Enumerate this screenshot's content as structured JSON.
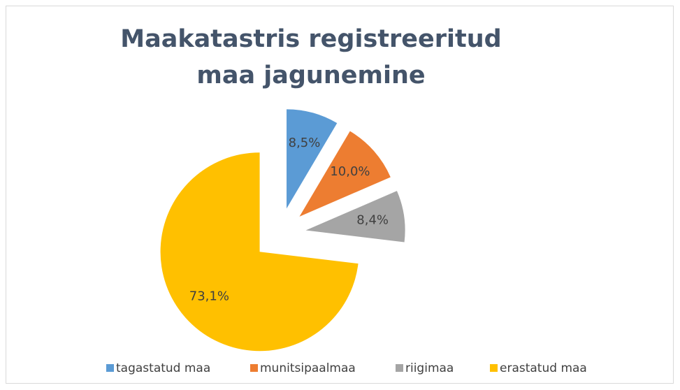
{
  "chart_data": {
    "type": "pie",
    "title": "Maakatastris registreeritud maa jagunemine",
    "categories": [
      "tagastatud maa",
      "munitsipaalmaa",
      "riigimaa",
      "erastatud maa"
    ],
    "values": [
      8.5,
      10.0,
      8.4,
      73.1
    ],
    "value_labels": [
      "8,5%",
      "10,0%",
      "8,4%",
      "73,1%"
    ],
    "colors": [
      "#5b9bd5",
      "#ed7d31",
      "#a5a5a5",
      "#ffc000"
    ],
    "legend": "bottom"
  }
}
